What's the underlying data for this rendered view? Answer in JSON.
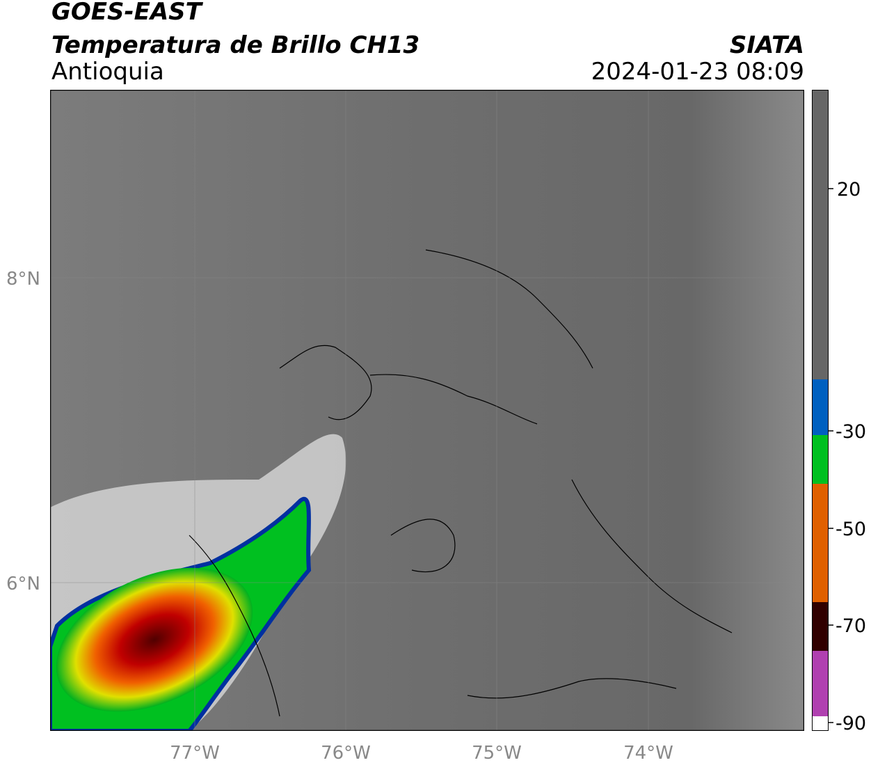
{
  "header": {
    "satellite": "GOES-EAST",
    "product": "Temperatura de Brillo CH13",
    "region": "Antioquia",
    "agency": "SIATA",
    "datetime": "2024-01-23 08:09"
  },
  "map": {
    "lon_range": [
      -77.95,
      -72.95
    ],
    "lat_range": [
      5.0,
      9.25
    ],
    "lat_ticks": [
      "8°N",
      "6°N"
    ],
    "lon_ticks": [
      "77°W",
      "76°W",
      "75°W",
      "74°W"
    ],
    "gridlines": true
  },
  "colorbar": {
    "range": [
      -90,
      30
    ],
    "ticks": [
      "20",
      "-30",
      "-50",
      "-70",
      "-90"
    ],
    "tick_values": [
      20,
      -30,
      -50,
      -70,
      -90
    ],
    "colors": {
      "warm_top": "#1a1a1a",
      "gray_mid": "#8c8c8c",
      "white": "#ffffff",
      "cyan": "#00d8ee",
      "blue": "#0030a0",
      "green": "#00c020",
      "yellow": "#f0f000",
      "orange": "#f08000",
      "red": "#e00000",
      "dark_red": "#600000",
      "black": "#000000",
      "pink": "#e060c0",
      "purple": "#8a1890"
    }
  }
}
